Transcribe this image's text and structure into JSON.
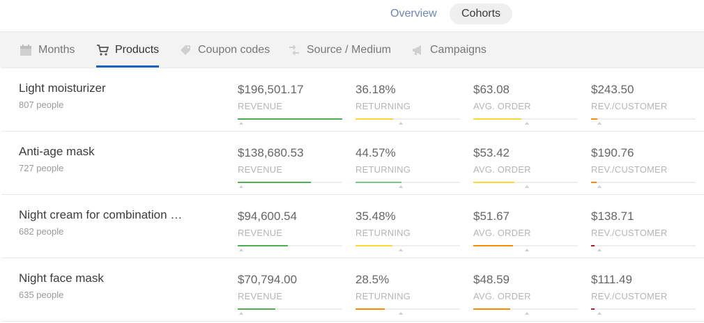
{
  "top_tabs": {
    "overview": "Overview",
    "cohorts": "Cohorts"
  },
  "tabs": [
    {
      "label": "Months",
      "icon": "calendar-icon"
    },
    {
      "label": "Products",
      "icon": "cart-icon"
    },
    {
      "label": "Coupon codes",
      "icon": "tag-icon"
    },
    {
      "label": "Source / Medium",
      "icon": "source-arrows-icon"
    },
    {
      "label": "Campaigns",
      "icon": "megaphone-icon"
    }
  ],
  "active_tab": "Products",
  "colors": {
    "green": "#4caf50",
    "light_green": "#81c784",
    "yellow": "#fdd835",
    "orange": "#fb8c00",
    "dark_red": "#b71c1c",
    "accent": "#1565c0"
  },
  "products": [
    {
      "name": "Light moisturizer",
      "people": "807 people",
      "metrics": [
        {
          "value": "$196,501.17",
          "label": "REVENUE",
          "level": 1.0,
          "color": "#4caf50",
          "marker": 0.03
        },
        {
          "value": "36.18%",
          "label": "RETURNING",
          "level": 0.36,
          "color": "#fdd835",
          "marker": 0.43
        },
        {
          "value": "$63.08",
          "label": "AVG. ORDER",
          "level": 0.46,
          "color": "#fdd835",
          "marker": 0.51
        },
        {
          "value": "$243.50",
          "label": "REV./CUSTOMER",
          "level": 0.06,
          "color": "#fb8c00",
          "marker": 0.08
        }
      ]
    },
    {
      "name": "Anti-age mask",
      "people": "727 people",
      "metrics": [
        {
          "value": "$138,680.53",
          "label": "REVENUE",
          "level": 0.7,
          "color": "#4caf50",
          "marker": 0.03
        },
        {
          "value": "44.57%",
          "label": "RETURNING",
          "level": 0.44,
          "color": "#81c784",
          "marker": 0.43
        },
        {
          "value": "$53.42",
          "label": "AVG. ORDER",
          "level": 0.39,
          "color": "#fdd835",
          "marker": 0.51
        },
        {
          "value": "$190.76",
          "label": "REV./CUSTOMER",
          "level": 0.05,
          "color": "#fb8c00",
          "marker": 0.08
        }
      ]
    },
    {
      "name": "Night cream for combination …",
      "people": "682 people",
      "metrics": [
        {
          "value": "$94,600.54",
          "label": "REVENUE",
          "level": 0.48,
          "color": "#4caf50",
          "marker": 0.03
        },
        {
          "value": "35.48%",
          "label": "RETURNING",
          "level": 0.35,
          "color": "#fdd835",
          "marker": 0.43
        },
        {
          "value": "$51.67",
          "label": "AVG. ORDER",
          "level": 0.38,
          "color": "#fb8c00",
          "marker": 0.51
        },
        {
          "value": "$138.71",
          "label": "REV./CUSTOMER",
          "level": 0.03,
          "color": "#b71c1c",
          "marker": 0.08
        }
      ]
    },
    {
      "name": "Night face mask",
      "people": "635 people",
      "metrics": [
        {
          "value": "$70,794.00",
          "label": "REVENUE",
          "level": 0.36,
          "color": "#4caf50",
          "marker": 0.03
        },
        {
          "value": "28.5%",
          "label": "RETURNING",
          "level": 0.28,
          "color": "#fb8c00",
          "marker": 0.43
        },
        {
          "value": "$48.59",
          "label": "AVG. ORDER",
          "level": 0.35,
          "color": "#fb8c00",
          "marker": 0.51
        },
        {
          "value": "$111.49",
          "label": "REV./CUSTOMER",
          "level": 0.03,
          "color": "#b71c1c",
          "marker": 0.08
        }
      ]
    }
  ]
}
